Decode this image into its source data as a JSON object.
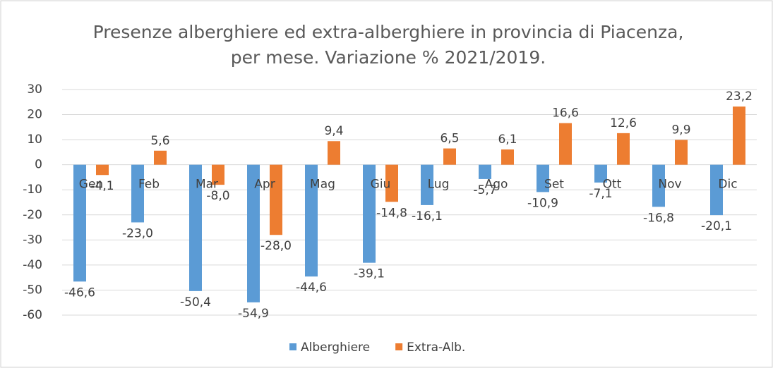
{
  "chart_data": {
    "type": "bar",
    "title": "Presenze alberghiere ed extra-alberghiere in provincia di Piacenza, per mese. Variazione % 2021/2019.",
    "categories": [
      "Gen",
      "Feb",
      "Mar",
      "Apr",
      "Mag",
      "Giu",
      "Lug",
      "Ago",
      "Set",
      "Ott",
      "Nov",
      "Dic"
    ],
    "series": [
      {
        "name": "Alberghiere",
        "color": "#5b9bd5",
        "values": [
          -46.6,
          -23.0,
          -50.4,
          -54.9,
          -44.6,
          -39.1,
          -16.1,
          -5.7,
          -10.9,
          -7.1,
          -16.8,
          -20.1
        ],
        "value_labels": [
          "-46,6",
          "-23,0",
          "-50,4",
          "-54,9",
          "-44,6",
          "-39,1",
          "-16,1",
          "-5,7",
          "-10,9",
          "-7,1",
          "-16,8",
          "-20,1"
        ]
      },
      {
        "name": "Extra-Alb.",
        "color": "#ed7d31",
        "values": [
          -4.1,
          5.6,
          -8.0,
          -28.0,
          9.4,
          -14.8,
          6.5,
          6.1,
          16.6,
          12.6,
          9.9,
          23.2
        ],
        "value_labels": [
          "-4,1",
          "5,6",
          "-8,0",
          "-28,0",
          "9,4",
          "-14,8",
          "6,5",
          "6,1",
          "16,6",
          "12,6",
          "9,9",
          "23,2"
        ]
      }
    ],
    "ylim": [
      -60,
      30
    ],
    "yticks": [
      30,
      20,
      10,
      0,
      -10,
      -20,
      -30,
      -40,
      -50,
      -60
    ],
    "grid": true,
    "legend": "bottom"
  }
}
